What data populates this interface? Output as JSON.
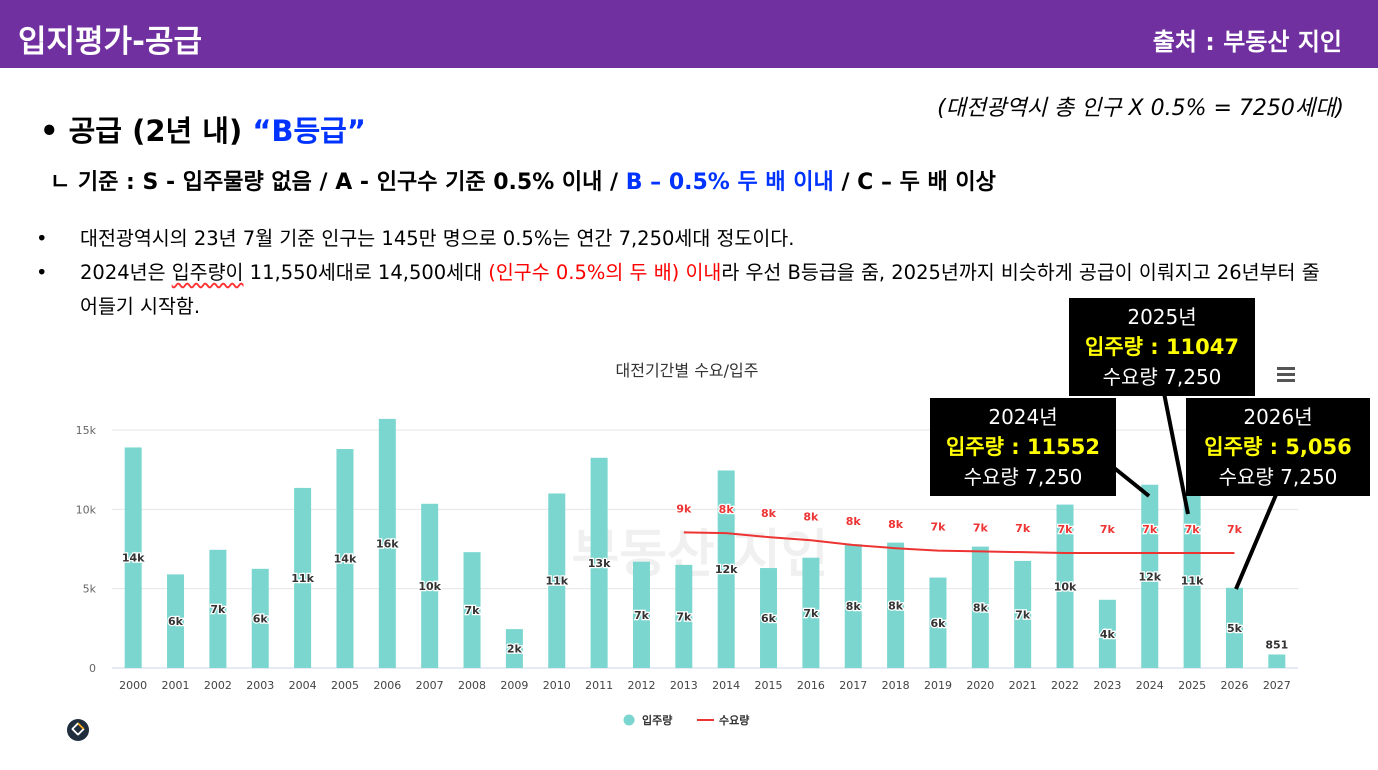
{
  "header": {
    "title": "입지평가-공급",
    "source": "출처 : 부동산 지인"
  },
  "formula": "(대전광역시 총 인구 X 0.5% = 7250세대)",
  "supply": {
    "prefix": "•  공급 (2년 내) ",
    "grade": "“B등급”"
  },
  "criteria": {
    "part1": "ㄴ 기준 : S - 입주물량 없음 / A - 인구수 기준 0.5% 이내 / ",
    "part2": "B – 0.5% 두 배 이내",
    "part3": " / C – 두 배 이상"
  },
  "bullets": {
    "b1": "대전광역시의 23년 7월 기준 인구는 145만 명으로 0.5%는 연간 7,250세대 정도이다.",
    "b2a": "2024년은 ",
    "b2b": "입주량이",
    "b2c": " 11,550세대로 14,500세대 ",
    "b2d": "(인구수 0.5%의 두 배) 이내",
    "b2e": "라 우선 B등급을 줌, 2025년까지 비슷하게 공급이 이뤄지고 26년부터 줄어들기 시작함.",
    "dot": "•"
  },
  "callouts": {
    "y2025": {
      "year": "2025년",
      "supply": "입주량 : 11047",
      "demand": "수요량 7,250"
    },
    "y2024": {
      "year": "2024년",
      "supply": "입주량 : 11552",
      "demand": "수요량 7,250"
    },
    "y2026": {
      "year": "2026년",
      "supply": "입주량 : 5,056",
      "demand": "수요량 7,250"
    }
  },
  "chart_data": {
    "type": "bar",
    "title": "대전기간별 수요/입주",
    "categories": [
      "2000",
      "2001",
      "2002",
      "2003",
      "2004",
      "2005",
      "2006",
      "2007",
      "2008",
      "2009",
      "2010",
      "2011",
      "2012",
      "2013",
      "2014",
      "2015",
      "2016",
      "2017",
      "2018",
      "2019",
      "2020",
      "2021",
      "2022",
      "2023",
      "2024",
      "2025",
      "2026",
      "2027"
    ],
    "series": [
      {
        "name": "입주량",
        "kind": "bar",
        "color": "#7ad6cf",
        "values": [
          13900,
          5900,
          7450,
          6250,
          11350,
          13800,
          15700,
          10350,
          7300,
          2450,
          11000,
          13250,
          6700,
          6500,
          12450,
          6300,
          6950,
          7800,
          7900,
          5700,
          7650,
          6750,
          10300,
          4300,
          11552,
          11047,
          5056,
          851
        ],
        "labels": [
          "14k",
          "6k",
          "7k",
          "6k",
          "11k",
          "14k",
          "16k",
          "10k",
          "7k",
          "2k",
          "11k",
          "13k",
          "7k",
          "7k",
          "12k",
          "6k",
          "7k",
          "8k",
          "8k",
          "6k",
          "8k",
          "7k",
          "10k",
          "4k",
          "12k",
          "11k",
          "5k",
          "851"
        ]
      },
      {
        "name": "수요량",
        "kind": "line",
        "color": "#ee3333",
        "x": [
          "2013",
          "2014",
          "2015",
          "2016",
          "2017",
          "2018",
          "2019",
          "2020",
          "2021",
          "2022",
          "2023",
          "2024",
          "2025",
          "2026"
        ],
        "values": [
          8550,
          8500,
          8250,
          8050,
          7750,
          7550,
          7400,
          7350,
          7300,
          7250,
          7250,
          7250,
          7250,
          7250
        ],
        "labels": [
          "9k",
          "8k",
          "8k",
          "8k",
          "8k",
          "8k",
          "7k",
          "7k",
          "7k",
          "7k",
          "7k",
          "7k",
          "7k",
          "7k"
        ]
      }
    ],
    "yticks": [
      "0",
      "5k",
      "10k",
      "15k"
    ],
    "ylim": [
      0,
      15000
    ],
    "legend": "bottom-center",
    "watermark": "부동산 지인"
  }
}
